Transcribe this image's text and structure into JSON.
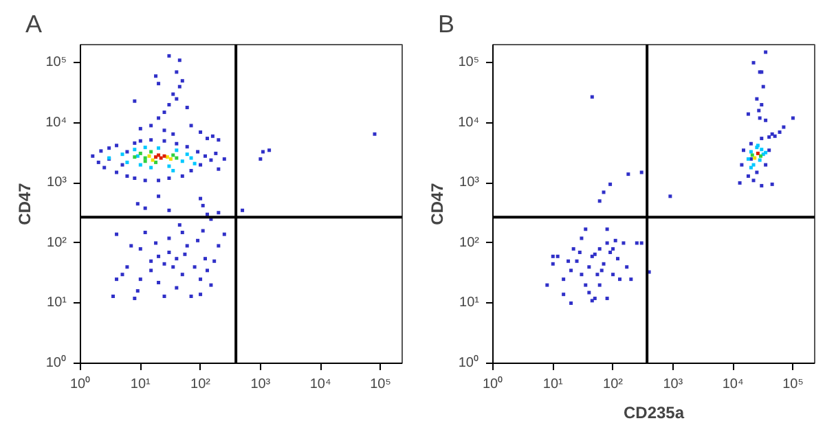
{
  "chart_data": [
    {
      "type": "scatter",
      "title": "A",
      "ylabel": "CD47",
      "log": "xy",
      "grid": false,
      "marker": "square",
      "xlim": [
        1,
        230000
      ],
      "ylim": [
        1,
        200000
      ],
      "xticks": [
        {
          "value": 1,
          "label": "10⁰"
        },
        {
          "value": 10,
          "label": "10¹"
        },
        {
          "value": 100,
          "label": "10²"
        },
        {
          "value": 1000,
          "label": "10³"
        },
        {
          "value": 10000,
          "label": "10⁴"
        },
        {
          "value": 100000,
          "label": "10⁵"
        }
      ],
      "yticks": [
        {
          "value": 1,
          "label": "10⁰"
        },
        {
          "value": 10,
          "label": "10¹"
        },
        {
          "value": 100,
          "label": "10²"
        },
        {
          "value": 1000,
          "label": "10³"
        },
        {
          "value": 10000,
          "label": "10⁴"
        },
        {
          "value": 100000,
          "label": "10⁵"
        }
      ],
      "ref_lines": [
        {
          "axis": "x",
          "value": 390,
          "color": "#000000"
        },
        {
          "axis": "y",
          "value": 270,
          "color": "#000000"
        }
      ],
      "series": [
        {
          "color": "#3030c8",
          "x": [
            1.6,
            2,
            2.2,
            2.5,
            3,
            3,
            4,
            4,
            5,
            6,
            6,
            8,
            8,
            10,
            12,
            15,
            20,
            25,
            30,
            40,
            50,
            60,
            70,
            90,
            100,
            120,
            150,
            180,
            250,
            200,
            130,
            160,
            200,
            10,
            15,
            20,
            25,
            30,
            35,
            40,
            45,
            50,
            40,
            30,
            45,
            20,
            8,
            60,
            70,
            100,
            25,
            18,
            35,
            9,
            12,
            20,
            30,
            100,
            110,
            130,
            150,
            200,
            500,
            4,
            5,
            6,
            8,
            9,
            10,
            10,
            12,
            15,
            15,
            18,
            20,
            20,
            25,
            25,
            30,
            30,
            35,
            40,
            40,
            50,
            50,
            60,
            70,
            80,
            100,
            100,
            120,
            130,
            150,
            170,
            200,
            250,
            7,
            45,
            90,
            110,
            3.5,
            4,
            55,
            1000,
            1100,
            1400,
            80000
          ],
          "values": [
            2800,
            2200,
            3400,
            1800,
            3800,
            2500,
            1500,
            4200,
            2000,
            3300,
            1300,
            4600,
            1200,
            5000,
            1100,
            5200,
            1100,
            5000,
            1200,
            4500,
            1300,
            4000,
            1600,
            3300,
            2000,
            2800,
            2400,
            3100,
            2500,
            1700,
            5500,
            6000,
            5200,
            8000,
            9000,
            12000,
            15000,
            20000,
            30000,
            25000,
            40000,
            50000,
            70000,
            130000,
            110000,
            45000,
            23000,
            18000,
            9000,
            7000,
            7500,
            60000,
            6500,
            450,
            380,
            600,
            350,
            550,
            420,
            300,
            250,
            320,
            350,
            140,
            30,
            40,
            12,
            16,
            25,
            80,
            150,
            50,
            35,
            100,
            60,
            22,
            45,
            13,
            70,
            120,
            40,
            18,
            55,
            30,
            150,
            90,
            13,
            40,
            25,
            14,
            55,
            35,
            20,
            50,
            90,
            140,
            90,
            200,
            110,
            160,
            13,
            25,
            65,
            2500,
            3300,
            3500,
            6500
          ]
        },
        {
          "color": "#00c8ff",
          "x": [
            3,
            5,
            6,
            8,
            10,
            12,
            15,
            20,
            30,
            40,
            50,
            60,
            70,
            35,
            9,
            80
          ],
          "values": [
            2600,
            3000,
            2200,
            3600,
            2000,
            3900,
            1800,
            3800,
            1900,
            3500,
            2300,
            3000,
            2600,
            1600,
            2800,
            2100
          ]
        },
        {
          "color": "#30d040",
          "x": [
            8,
            10,
            12,
            15,
            18,
            35,
            40,
            12
          ],
          "values": [
            2700,
            3100,
            2300,
            3300,
            2200,
            2900,
            2600,
            2600
          ]
        },
        {
          "color": "#f0e000",
          "x": [
            14,
            28,
            32,
            16
          ],
          "values": [
            2800,
            2700,
            2500,
            2400
          ]
        },
        {
          "color": "#e02000",
          "x": [
            18,
            22,
            25,
            20
          ],
          "values": [
            2700,
            2600,
            2800,
            2900
          ]
        }
      ]
    },
    {
      "type": "scatter",
      "title": "B",
      "xlabel": "CD235a",
      "ylabel": "CD47",
      "log": "xy",
      "grid": false,
      "marker": "square",
      "xlim": [
        1,
        230000
      ],
      "ylim": [
        1,
        200000
      ],
      "xticks": [
        {
          "value": 1,
          "label": "10⁰"
        },
        {
          "value": 10,
          "label": "10¹"
        },
        {
          "value": 100,
          "label": "10²"
        },
        {
          "value": 1000,
          "label": "10³"
        },
        {
          "value": 10000,
          "label": "10⁴"
        },
        {
          "value": 100000,
          "label": "10⁵"
        }
      ],
      "yticks": [
        {
          "value": 1,
          "label": "10⁰"
        },
        {
          "value": 10,
          "label": "10¹"
        },
        {
          "value": 100,
          "label": "10²"
        },
        {
          "value": 1000,
          "label": "10³"
        },
        {
          "value": 10000,
          "label": "10⁴"
        },
        {
          "value": 100000,
          "label": "10⁵"
        }
      ],
      "ref_lines": [
        {
          "axis": "x",
          "value": 370,
          "color": "#000000"
        },
        {
          "axis": "y",
          "value": 270,
          "color": "#000000"
        }
      ],
      "series": [
        {
          "color": "#3030c8",
          "x": [
            13000,
            14000,
            15000,
            18000,
            20000,
            22000,
            25000,
            30000,
            35000,
            40000,
            45000,
            50000,
            60000,
            70000,
            100000,
            45000,
            30000,
            28000,
            30000,
            25000,
            32000,
            28000,
            22000,
            35000,
            30000,
            27000,
            40000,
            20000,
            18000,
            35000,
            45,
            60,
            70,
            90,
            180,
            300,
            900,
            400,
            300,
            8,
            10,
            10,
            12,
            15,
            18,
            20,
            20,
            22,
            25,
            30,
            30,
            35,
            40,
            40,
            45,
            50,
            50,
            55,
            60,
            60,
            70,
            80,
            80,
            90,
            100,
            100,
            120,
            130,
            150,
            170,
            200,
            250,
            35,
            80,
            110,
            65,
            45,
            28,
            15
          ],
          "values": [
            1000,
            2000,
            3500,
            1300,
            4500,
            1100,
            1500,
            5500,
            2000,
            5800,
            6500,
            6000,
            7000,
            8500,
            12000,
            950,
            900,
            12000,
            20000,
            25000,
            40000,
            70000,
            100000,
            150000,
            70000,
            16000,
            3500,
            2500,
            14000,
            11000,
            27000,
            500,
            700,
            950,
            1400,
            1500,
            600,
            33,
            100,
            20,
            45,
            60,
            60,
            25,
            50,
            35,
            10,
            80,
            50,
            30,
            120,
            20,
            40,
            15,
            60,
            65,
            12,
            30,
            20,
            80,
            45,
            100,
            12,
            70,
            80,
            30,
            55,
            25,
            100,
            40,
            25,
            100,
            170,
            170,
            110,
            35,
            11,
            70,
            14
          ]
        },
        {
          "color": "#00c8ff",
          "x": [
            18000,
            20000,
            22000,
            25000,
            28000,
            30000,
            32000,
            20000,
            26000,
            35000
          ],
          "values": [
            2500,
            3300,
            2000,
            3900,
            2400,
            3600,
            3000,
            1800,
            4200,
            3200
          ]
        },
        {
          "color": "#30d040",
          "x": [
            21000,
            29000
          ],
          "values": [
            2900,
            2800
          ]
        },
        {
          "color": "#f0e000",
          "x": [
            23000
          ],
          "values": [
            2600
          ]
        },
        {
          "color": "#e02000",
          "x": [
            26000
          ],
          "values": [
            3100
          ]
        }
      ]
    }
  ]
}
